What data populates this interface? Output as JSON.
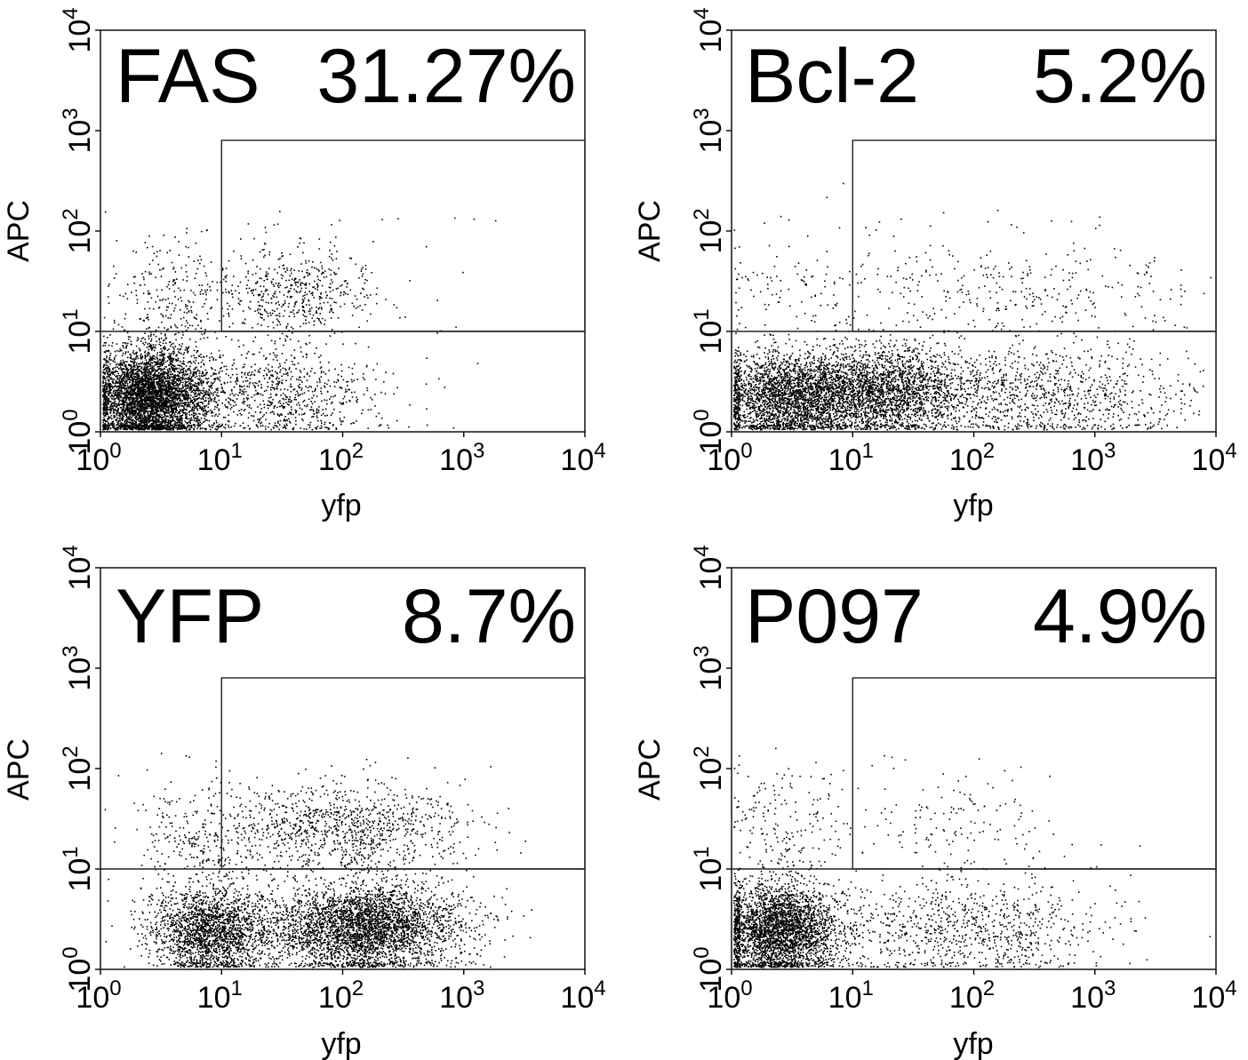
{
  "chart_data": [
    {
      "type": "scatter",
      "title": "FAS",
      "gate_percent": "31.27%",
      "xlabel": "yfp",
      "ylabel": "APC",
      "xscale": "log",
      "yscale": "log",
      "xlim": [
        1,
        10000
      ],
      "ylim": [
        1,
        10000
      ],
      "x_ticks": [
        {
          "base": "10",
          "exp": "0"
        },
        {
          "base": "10",
          "exp": "1"
        },
        {
          "base": "10",
          "exp": "2"
        },
        {
          "base": "10",
          "exp": "3"
        },
        {
          "base": "10",
          "exp": "4"
        }
      ],
      "y_ticks": [
        {
          "base": "10",
          "exp": "0"
        },
        {
          "base": "10",
          "exp": "1"
        },
        {
          "base": "10",
          "exp": "2"
        },
        {
          "base": "10",
          "exp": "3"
        },
        {
          "base": "10",
          "exp": "4"
        }
      ],
      "gate": {
        "x": [
          10,
          10000
        ],
        "y": [
          10,
          800
        ]
      },
      "gate_x_threshold": 10,
      "gate_y_threshold": 10,
      "clusters": [
        {
          "cx": 2.5,
          "cy": 2.2,
          "sx": 0.22,
          "sy": 0.24,
          "n": 3600
        },
        {
          "cx": 4,
          "cy": 2.5,
          "sx": 0.3,
          "sy": 0.25,
          "n": 900
        },
        {
          "cx": 35,
          "cy": 2.3,
          "sx": 0.36,
          "sy": 0.24,
          "n": 650
        },
        {
          "cx": 40,
          "cy": 25,
          "sx": 0.34,
          "sy": 0.22,
          "n": 520
        },
        {
          "cx": 4,
          "cy": 22,
          "sx": 0.25,
          "sy": 0.28,
          "n": 240
        }
      ],
      "global_noise_count": 80
    },
    {
      "type": "scatter",
      "title": "Bcl-2",
      "gate_percent": "5.2%",
      "xlabel": "yfp",
      "ylabel": "APC",
      "xscale": "log",
      "yscale": "log",
      "xlim": [
        1,
        10000
      ],
      "ylim": [
        1,
        10000
      ],
      "x_ticks": [
        {
          "base": "10",
          "exp": "0"
        },
        {
          "base": "10",
          "exp": "1"
        },
        {
          "base": "10",
          "exp": "2"
        },
        {
          "base": "10",
          "exp": "3"
        },
        {
          "base": "10",
          "exp": "4"
        }
      ],
      "y_ticks": [
        {
          "base": "10",
          "exp": "0"
        },
        {
          "base": "10",
          "exp": "1"
        },
        {
          "base": "10",
          "exp": "2"
        },
        {
          "base": "10",
          "exp": "3"
        },
        {
          "base": "10",
          "exp": "4"
        }
      ],
      "gate": {
        "x": [
          10,
          10000
        ],
        "y": [
          10,
          800
        ]
      },
      "gate_x_threshold": 10,
      "gate_y_threshold": 10,
      "clusters": [
        {
          "cx": 3,
          "cy": 2.2,
          "sx": 0.3,
          "sy": 0.22,
          "n": 2600
        },
        {
          "cx": 18,
          "cy": 2.5,
          "sx": 0.35,
          "sy": 0.22,
          "n": 2300
        },
        {
          "cx": 400,
          "cy": 2.3,
          "sx": 0.6,
          "sy": 0.25,
          "n": 1000
        },
        {
          "cx": 200,
          "cy": 25,
          "sx": 0.8,
          "sy": 0.25,
          "n": 320
        },
        {
          "cx": 3,
          "cy": 25,
          "sx": 0.4,
          "sy": 0.3,
          "n": 100
        }
      ],
      "global_noise_count": 60
    },
    {
      "type": "scatter",
      "title": "YFP",
      "gate_percent": "8.7%",
      "xlabel": "yfp",
      "ylabel": "APC",
      "xscale": "log",
      "yscale": "log",
      "xlim": [
        1,
        10000
      ],
      "ylim": [
        1,
        10000
      ],
      "x_ticks": [
        {
          "base": "10",
          "exp": "0"
        },
        {
          "base": "10",
          "exp": "1"
        },
        {
          "base": "10",
          "exp": "2"
        },
        {
          "base": "10",
          "exp": "3"
        },
        {
          "base": "10",
          "exp": "4"
        }
      ],
      "y_ticks": [
        {
          "base": "10",
          "exp": "0"
        },
        {
          "base": "10",
          "exp": "1"
        },
        {
          "base": "10",
          "exp": "2"
        },
        {
          "base": "10",
          "exp": "3"
        },
        {
          "base": "10",
          "exp": "4"
        }
      ],
      "gate": {
        "x": [
          10,
          10000
        ],
        "y": [
          10,
          800
        ]
      },
      "gate_x_threshold": 10,
      "gate_y_threshold": 10,
      "clusters": [
        {
          "cx": 8,
          "cy": 2.4,
          "sx": 0.25,
          "sy": 0.22,
          "n": 2000
        },
        {
          "cx": 150,
          "cy": 2.6,
          "sx": 0.4,
          "sy": 0.22,
          "n": 3500
        },
        {
          "cx": 100,
          "cy": 25,
          "sx": 0.5,
          "sy": 0.22,
          "n": 1000
        },
        {
          "cx": 6,
          "cy": 20,
          "sx": 0.25,
          "sy": 0.28,
          "n": 250
        }
      ],
      "global_noise_count": 70
    },
    {
      "type": "scatter",
      "title": "P097",
      "gate_percent": "4.9%",
      "xlabel": "yfp",
      "ylabel": "APC",
      "xscale": "log",
      "yscale": "log",
      "xlim": [
        1,
        10000
      ],
      "ylim": [
        1,
        10000
      ],
      "x_ticks": [
        {
          "base": "10",
          "exp": "0"
        },
        {
          "base": "10",
          "exp": "1"
        },
        {
          "base": "10",
          "exp": "2"
        },
        {
          "base": "10",
          "exp": "3"
        },
        {
          "base": "10",
          "exp": "4"
        }
      ],
      "y_ticks": [
        {
          "base": "10",
          "exp": "0"
        },
        {
          "base": "10",
          "exp": "1"
        },
        {
          "base": "10",
          "exp": "2"
        },
        {
          "base": "10",
          "exp": "3"
        },
        {
          "base": "10",
          "exp": "4"
        }
      ],
      "gate": {
        "x": [
          10,
          10000
        ],
        "y": [
          10,
          800
        ]
      },
      "gate_x_threshold": 10,
      "gate_y_threshold": 10,
      "clusters": [
        {
          "cx": 2.5,
          "cy": 2.4,
          "sx": 0.25,
          "sy": 0.24,
          "n": 3000
        },
        {
          "cx": 80,
          "cy": 2.5,
          "sx": 0.6,
          "sy": 0.25,
          "n": 900
        },
        {
          "cx": 3,
          "cy": 25,
          "sx": 0.3,
          "sy": 0.3,
          "n": 180
        },
        {
          "cx": 60,
          "cy": 25,
          "sx": 0.5,
          "sy": 0.25,
          "n": 140
        }
      ],
      "global_noise_count": 50
    }
  ]
}
